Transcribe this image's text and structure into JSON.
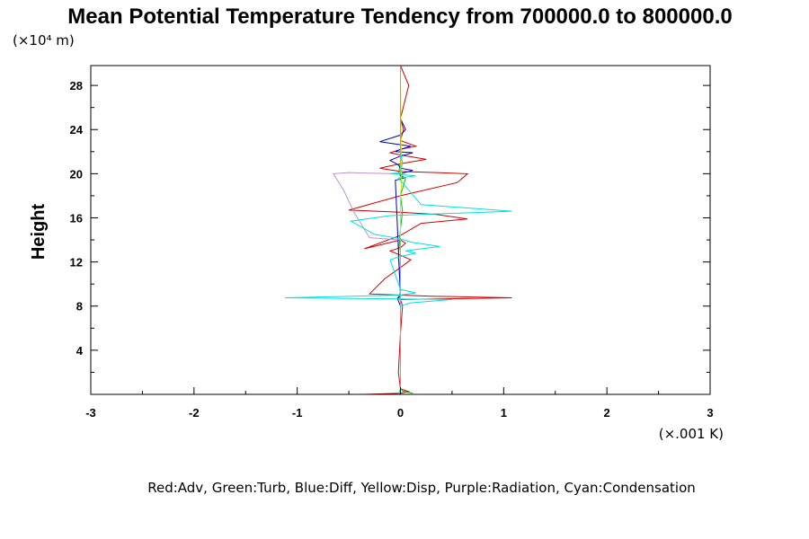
{
  "chart_data": {
    "type": "line",
    "title": "Mean Potential Temperature Tendency from 700000.0 to 800000.0",
    "ylabel": "Height",
    "y_unit_label": "(×10⁴ m)",
    "x_unit_label": "(×.001 K)",
    "legend_text": "Red:Adv, Green:Turb, Blue:Diff, Yellow:Disp, Purple:Radiation, Cyan:Condensation",
    "xlim": [
      -3,
      3
    ],
    "ylim": [
      0,
      29.8
    ],
    "x_ticks": [
      -3,
      -2,
      -1,
      0,
      1,
      2,
      3
    ],
    "y_ticks": [
      4,
      8,
      12,
      16,
      20,
      24,
      28
    ],
    "grid": false,
    "series": [
      {
        "name": "Adv",
        "color": "#d00000",
        "x": [
          -0.35,
          0.0,
          0.08,
          0.0,
          -0.02,
          0.0,
          0.02,
          0.0,
          1.08,
          0.3,
          0.0,
          -0.3,
          -0.15,
          0.0,
          0.1,
          0.0,
          -0.1,
          0.0,
          0.05,
          0.0,
          -0.35,
          0.0,
          0.2,
          0.65,
          0.35,
          0.0,
          -0.5,
          0.0,
          0.55,
          0.65,
          0.35,
          0.0,
          -0.2,
          0.0,
          0.25,
          0.0,
          -0.1,
          0.0,
          0.15,
          0.0,
          0.03,
          0.0,
          0.08,
          0.0
        ],
        "y": [
          0.0,
          0.1,
          0.25,
          0.5,
          2.0,
          5.5,
          8.0,
          8.6,
          8.75,
          8.9,
          9.0,
          9.1,
          10.5,
          11.5,
          12.2,
          12.6,
          13.0,
          13.3,
          13.7,
          14.0,
          13.2,
          14.4,
          15.5,
          15.9,
          16.3,
          16.5,
          16.7,
          18.0,
          19.2,
          20.0,
          20.1,
          20.2,
          20.5,
          20.9,
          21.3,
          21.7,
          21.9,
          22.2,
          22.5,
          23.0,
          24.0,
          25.0,
          28.0,
          29.8
        ]
      },
      {
        "name": "Turb",
        "color": "#00c000",
        "x": [
          0.12,
          0.02,
          0.0,
          0.0,
          0.0,
          -0.02,
          0.0,
          -0.02,
          0.0,
          0.02,
          0.0,
          0.05,
          -0.02,
          0.0,
          0.0
        ],
        "y": [
          0.1,
          0.3,
          0.6,
          5.0,
          8.5,
          8.8,
          9.2,
          12.5,
          15.0,
          16.6,
          18.0,
          19.6,
          20.0,
          21.0,
          29.8
        ]
      },
      {
        "name": "Diff",
        "color": "#0000c0",
        "x": [
          0.0,
          0.0,
          -0.03,
          0.0,
          0.0,
          -0.05,
          0.03,
          0.0,
          0.0,
          0.12,
          0.0,
          -0.02,
          -0.1,
          0.0,
          0.12,
          -0.05,
          0.0,
          0.1,
          -0.2,
          0.0,
          0.05,
          0.0,
          0.0
        ],
        "y": [
          0.0,
          8.0,
          8.7,
          8.9,
          9.0,
          19.4,
          19.6,
          19.8,
          20.0,
          20.3,
          20.5,
          20.8,
          21.2,
          21.6,
          21.9,
          22.0,
          22.2,
          22.5,
          22.9,
          23.5,
          24.0,
          25.0,
          29.8
        ]
      },
      {
        "name": "Disp",
        "color": "#e0e000",
        "x": [
          0.0,
          0.0,
          0.01,
          0.0
        ],
        "y": [
          0.0,
          18.0,
          19.0,
          29.8
        ]
      },
      {
        "name": "Radiation",
        "color": "#c090d0",
        "x": [
          0.0,
          0.0,
          -0.3,
          -0.45,
          -0.55,
          -0.65,
          -0.5,
          -0.3,
          -0.05,
          0.0,
          0.0
        ],
        "y": [
          0.0,
          14.0,
          14.2,
          16.5,
          18.5,
          20.0,
          20.1,
          20.05,
          20.0,
          20.0,
          29.8
        ]
      },
      {
        "name": "Condensation",
        "color": "#00e0e0",
        "x": [
          -0.02,
          0.0,
          0.0,
          0.1,
          0.5,
          -1.12,
          0.0,
          0.15,
          0.0,
          -0.1,
          0.0,
          0.15,
          0.05,
          0.38,
          0.1,
          0.0,
          -0.25,
          -0.48,
          -0.1,
          1.08,
          0.2,
          -0.02,
          0.15,
          -0.1,
          0.0,
          0.02,
          0.0,
          0.0
        ],
        "y": [
          0.0,
          0.5,
          8.0,
          8.3,
          8.6,
          8.75,
          9.0,
          9.2,
          9.5,
          12.2,
          12.5,
          12.8,
          13.0,
          13.4,
          13.8,
          14.1,
          14.5,
          15.7,
          16.2,
          16.6,
          17.2,
          19.6,
          19.8,
          20.0,
          20.1,
          21.0,
          22.0,
          29.8
        ]
      }
    ]
  }
}
